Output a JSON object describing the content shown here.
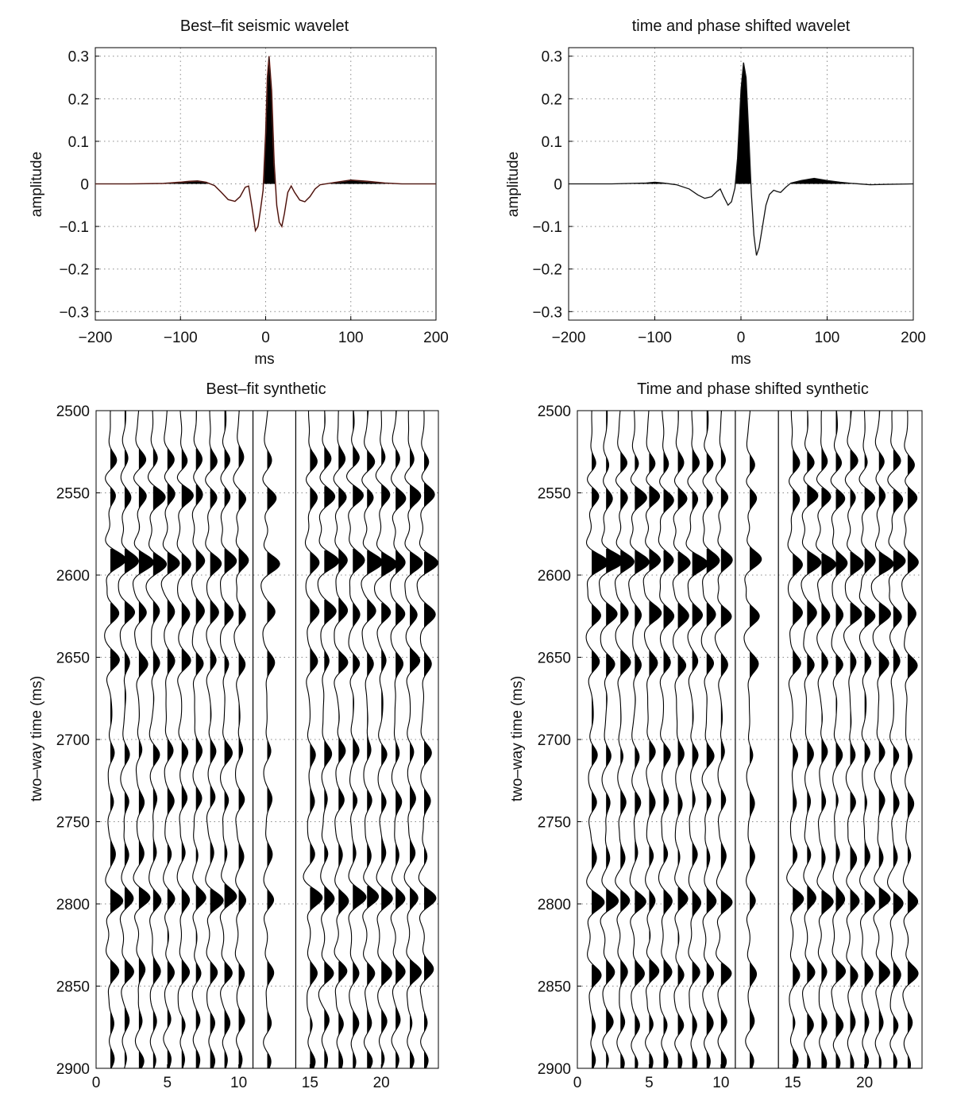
{
  "chart_data": [
    {
      "id": "p1",
      "type": "line",
      "title": "Best–fit seismic wavelet",
      "xlabel": "ms",
      "ylabel": "amplitude",
      "xlim": [
        -200,
        200
      ],
      "ylim": [
        -0.32,
        0.32
      ],
      "xticks": [
        -200,
        -100,
        0,
        100,
        200
      ],
      "xtick_labels": [
        "−200",
        "−100",
        "0",
        "100",
        "200"
      ],
      "yticks": [
        0.3,
        0.2,
        0.1,
        0,
        -0.1,
        -0.2,
        -0.3
      ],
      "ytick_labels": [
        "0.3",
        "0.2",
        "0.1",
        "0",
        "−0.1",
        "−0.2",
        "−0.3"
      ],
      "grid": true,
      "positive_fill": true,
      "overlay_color": "#b23a2e",
      "points": [
        [
          -200,
          0
        ],
        [
          -160,
          0
        ],
        [
          -120,
          0.001
        ],
        [
          -100,
          0.004
        ],
        [
          -90,
          0.006
        ],
        [
          -80,
          0.007
        ],
        [
          -70,
          0.004
        ],
        [
          -60,
          -0.004
        ],
        [
          -52,
          -0.02
        ],
        [
          -44,
          -0.037
        ],
        [
          -36,
          -0.041
        ],
        [
          -30,
          -0.03
        ],
        [
          -24,
          -0.008
        ],
        [
          -20,
          -0.005
        ],
        [
          -16,
          -0.055
        ],
        [
          -12,
          -0.11
        ],
        [
          -9,
          -0.1
        ],
        [
          -6,
          -0.06
        ],
        [
          -3,
          -0.015
        ],
        [
          0,
          0.12
        ],
        [
          2,
          0.25
        ],
        [
          4,
          0.3
        ],
        [
          7,
          0.22
        ],
        [
          10,
          0.05
        ],
        [
          13,
          -0.05
        ],
        [
          16,
          -0.09
        ],
        [
          19,
          -0.1
        ],
        [
          22,
          -0.07
        ],
        [
          26,
          -0.02
        ],
        [
          30,
          -0.005
        ],
        [
          34,
          -0.02
        ],
        [
          40,
          -0.038
        ],
        [
          46,
          -0.042
        ],
        [
          52,
          -0.03
        ],
        [
          58,
          -0.012
        ],
        [
          64,
          -0.002
        ],
        [
          80,
          0.003
        ],
        [
          100,
          0.009
        ],
        [
          120,
          0.006
        ],
        [
          140,
          0.002
        ],
        [
          160,
          0
        ],
        [
          200,
          0
        ]
      ]
    },
    {
      "id": "p2",
      "type": "line",
      "title": "time and phase shifted wavelet",
      "xlabel": "ms",
      "ylabel": "amplitude",
      "xlim": [
        -200,
        200
      ],
      "ylim": [
        -0.32,
        0.32
      ],
      "xticks": [
        -200,
        -100,
        0,
        100,
        200
      ],
      "xtick_labels": [
        "−200",
        "−100",
        "0",
        "100",
        "200"
      ],
      "yticks": [
        0.3,
        0.2,
        0.1,
        0,
        -0.1,
        -0.2,
        -0.3
      ],
      "ytick_labels": [
        "0.3",
        "0.2",
        "0.1",
        "0",
        "−0.1",
        "−0.2",
        "−0.3"
      ],
      "grid": true,
      "positive_fill": true,
      "points": [
        [
          -200,
          0
        ],
        [
          -150,
          0
        ],
        [
          -110,
          0.002
        ],
        [
          -100,
          0.004
        ],
        [
          -90,
          0.002
        ],
        [
          -75,
          -0.002
        ],
        [
          -60,
          -0.012
        ],
        [
          -50,
          -0.026
        ],
        [
          -42,
          -0.034
        ],
        [
          -34,
          -0.03
        ],
        [
          -28,
          -0.018
        ],
        [
          -24,
          -0.012
        ],
        [
          -20,
          -0.03
        ],
        [
          -15,
          -0.05
        ],
        [
          -11,
          -0.042
        ],
        [
          -7,
          -0.01
        ],
        [
          -4,
          0.06
        ],
        [
          0,
          0.22
        ],
        [
          3,
          0.285
        ],
        [
          6,
          0.25
        ],
        [
          9,
          0.12
        ],
        [
          12,
          -0.02
        ],
        [
          15,
          -0.12
        ],
        [
          18,
          -0.168
        ],
        [
          21,
          -0.15
        ],
        [
          25,
          -0.1
        ],
        [
          29,
          -0.05
        ],
        [
          33,
          -0.025
        ],
        [
          38,
          -0.015
        ],
        [
          42,
          -0.018
        ],
        [
          46,
          -0.02
        ],
        [
          52,
          -0.008
        ],
        [
          58,
          0.002
        ],
        [
          70,
          0.008
        ],
        [
          85,
          0.013
        ],
        [
          100,
          0.008
        ],
        [
          115,
          0.004
        ],
        [
          130,
          0.001
        ],
        [
          150,
          -0.002
        ],
        [
          170,
          -0.001
        ],
        [
          200,
          0
        ]
      ]
    },
    {
      "id": "p3",
      "type": "wiggle",
      "title": "Best–fit synthetic",
      "xlabel": "",
      "ylabel": "two–way time (ms)",
      "xlim": [
        0,
        24
      ],
      "ylim": [
        2500,
        2900
      ],
      "xticks": [
        0,
        5,
        10,
        15,
        20
      ],
      "yticks": [
        2500,
        2550,
        2600,
        2650,
        2700,
        2750,
        2800,
        2850,
        2900
      ],
      "traces": [
        1,
        2,
        3,
        4,
        5,
        6,
        7,
        8,
        9,
        10,
        12,
        15,
        16,
        17,
        18,
        19,
        20,
        21,
        22,
        23
      ],
      "divider_traces": [
        11,
        14
      ],
      "events": [
        {
          "t": 2530,
          "amp": 0.45
        },
        {
          "t": 2552,
          "amp": 0.65
        },
        {
          "t": 2592,
          "amp": 1.0
        },
        {
          "t": 2623,
          "amp": 0.7
        },
        {
          "t": 2653,
          "amp": 0.55
        },
        {
          "t": 2708,
          "amp": 0.4
        },
        {
          "t": 2737,
          "amp": 0.35
        },
        {
          "t": 2770,
          "amp": 0.3
        },
        {
          "t": 2797,
          "amp": 0.75
        },
        {
          "t": 2841,
          "amp": 0.65
        },
        {
          "t": 2872,
          "amp": 0.35
        },
        {
          "t": 2895,
          "amp": 0.3
        }
      ]
    },
    {
      "id": "p4",
      "type": "wiggle",
      "title": "Time and phase shifted synthetic",
      "xlabel": "",
      "ylabel": "two–way time (ms)",
      "xlim": [
        0,
        24
      ],
      "ylim": [
        2500,
        2900
      ],
      "xticks": [
        0,
        5,
        10,
        15,
        20
      ],
      "yticks": [
        2500,
        2550,
        2600,
        2650,
        2700,
        2750,
        2800,
        2850,
        2900
      ],
      "traces": [
        1,
        2,
        3,
        4,
        5,
        6,
        7,
        8,
        9,
        10,
        12,
        15,
        16,
        17,
        18,
        19,
        20,
        21,
        22,
        23
      ],
      "divider_traces": [
        11,
        14
      ],
      "events": [
        {
          "t": 2532,
          "amp": 0.45
        },
        {
          "t": 2553,
          "amp": 0.65
        },
        {
          "t": 2592,
          "amp": 1.0
        },
        {
          "t": 2624,
          "amp": 0.7
        },
        {
          "t": 2654,
          "amp": 0.55
        },
        {
          "t": 2709,
          "amp": 0.4
        },
        {
          "t": 2738,
          "amp": 0.35
        },
        {
          "t": 2771,
          "amp": 0.3
        },
        {
          "t": 2798,
          "amp": 0.75
        },
        {
          "t": 2842,
          "amp": 0.65
        },
        {
          "t": 2873,
          "amp": 0.35
        },
        {
          "t": 2896,
          "amp": 0.3
        }
      ]
    }
  ]
}
